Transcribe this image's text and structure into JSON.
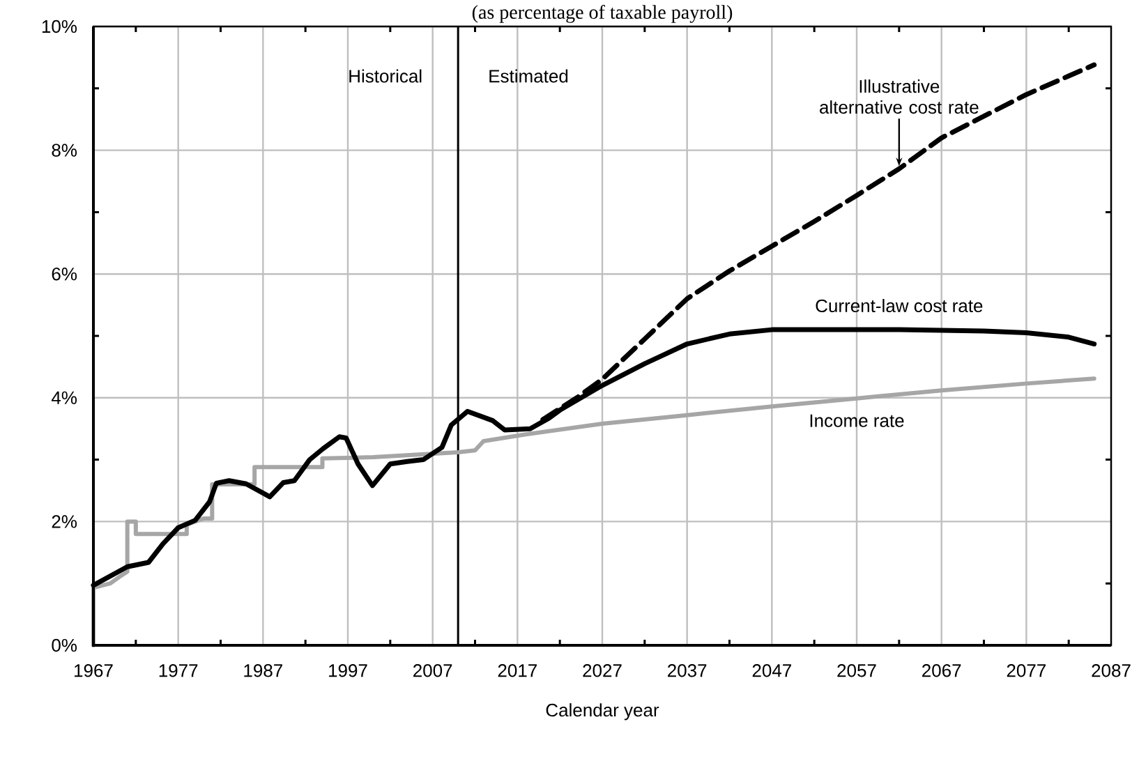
{
  "chart_data": {
    "type": "line",
    "subtitle": "(as percentage of taxable payroll)",
    "xlabel": "Calendar year",
    "xlim": [
      1967,
      2087
    ],
    "xticks": [
      1967,
      {
        "value": 1972,
        "label": null
      },
      1977,
      {
        "value": 1982,
        "label": null
      },
      1987,
      {
        "value": 1992,
        "label": null
      },
      1997,
      {
        "value": 2002,
        "label": null
      },
      2007,
      {
        "value": 2012,
        "label": null
      },
      2017,
      {
        "value": 2022,
        "label": null
      },
      2027,
      {
        "value": 2032,
        "label": null
      },
      2037,
      {
        "value": 2042,
        "label": null
      },
      2047,
      {
        "value": 2052,
        "label": null
      },
      2057,
      {
        "value": 2062,
        "label": null
      },
      2067,
      {
        "value": 2072,
        "label": null
      },
      2077,
      {
        "value": 2082,
        "label": null
      },
      2087
    ],
    "ylim": [
      0,
      10
    ],
    "yticks": [
      {
        "value": 0,
        "label": "0%"
      },
      {
        "value": 1,
        "label": null
      },
      {
        "value": 2,
        "label": "2%"
      },
      {
        "value": 3,
        "label": null
      },
      {
        "value": 4,
        "label": "4%"
      },
      {
        "value": 5,
        "label": null
      },
      {
        "value": 6,
        "label": "6%"
      },
      {
        "value": 7,
        "label": null
      },
      {
        "value": 8,
        "label": "8%"
      },
      {
        "value": 9,
        "label": null
      },
      {
        "value": 10,
        "label": "10%"
      }
    ],
    "grid": true,
    "marker": "none",
    "ref_lines": [
      {
        "axis": "x",
        "value": 2010,
        "color": "#000000",
        "line_style": "solid"
      }
    ],
    "annotations": [
      "Historical",
      "Estimated"
    ],
    "series": [
      {
        "name": "Illustrative alternative cost rate",
        "color": "#000000",
        "line_style": "dashed",
        "x": [
          2020,
          2024,
          2027,
          2032,
          2037,
          2042,
          2047,
          2052,
          2057,
          2062,
          2067,
          2072,
          2077,
          2082,
          2085
        ],
        "values": [
          3.65,
          4.0,
          4.3,
          4.95,
          5.6,
          6.05,
          6.45,
          6.85,
          7.27,
          7.7,
          8.2,
          8.55,
          8.9,
          9.2,
          9.38
        ]
      },
      {
        "name": "Current-law cost rate",
        "color": "#000000",
        "line_style": "solid",
        "x": [
          1967,
          1971,
          1973.5,
          1975.2,
          1977,
          1979,
          1980.7,
          1981.5,
          1983,
          1985,
          1987.8,
          1989.4,
          1990.7,
          1992.5,
          1994.1,
          1996,
          1996.8,
          1998.2,
          1999.9,
          2002,
          2004,
          2005.9,
          2008.1,
          2009.2,
          2011.1,
          2014.1,
          2015.5,
          2018.5,
          2020.7,
          2022,
          2027,
          2032,
          2037,
          2042,
          2047,
          2052,
          2057,
          2062,
          2067,
          2072,
          2077,
          2082,
          2085
        ],
        "values": [
          0.97,
          1.27,
          1.34,
          1.64,
          1.9,
          2.02,
          2.32,
          2.62,
          2.66,
          2.61,
          2.4,
          2.63,
          2.66,
          3.0,
          3.18,
          3.37,
          3.35,
          2.93,
          2.58,
          2.93,
          2.97,
          3.0,
          3.2,
          3.56,
          3.78,
          3.63,
          3.48,
          3.5,
          3.67,
          3.8,
          4.2,
          4.55,
          4.87,
          5.03,
          5.1,
          5.1,
          5.1,
          5.1,
          5.09,
          5.08,
          5.05,
          4.98,
          4.87
        ]
      },
      {
        "name": "Income rate",
        "color": "#a6a6a6",
        "line_style": "solid",
        "x": [
          1967,
          1967,
          1969,
          1970,
          1971,
          1971,
          1972,
          1972,
          1978,
          1978,
          1980,
          1981,
          1981,
          1986,
          1986,
          1994,
          1994,
          2000,
          2005,
          2010,
          2012,
          2013,
          2018,
          2027,
          2037,
          2047,
          2057,
          2067,
          2077,
          2085
        ],
        "values": [
          0,
          0.93,
          1.0,
          1.1,
          1.19,
          2.0,
          2.0,
          1.8,
          1.8,
          1.95,
          2.05,
          2.05,
          2.6,
          2.6,
          2.88,
          2.88,
          3.02,
          3.04,
          3.08,
          3.12,
          3.15,
          3.3,
          3.41,
          3.58,
          3.72,
          3.86,
          3.99,
          4.12,
          4.23,
          4.31
        ]
      }
    ]
  }
}
